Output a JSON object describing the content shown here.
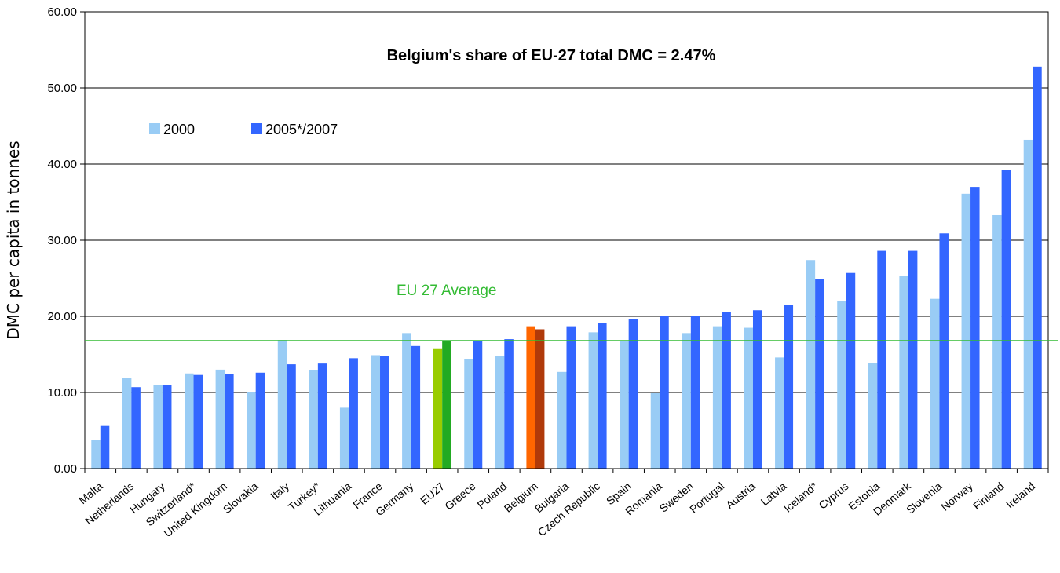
{
  "chart_data": {
    "type": "bar",
    "title": "Belgium's share of EU-27 total DMC = 2.47%",
    "xlabel": "",
    "ylabel": "DMC per capita in tonnes",
    "ylim": [
      0,
      60
    ],
    "yticks": [
      "0.00",
      "10.00",
      "20.00",
      "30.00",
      "40.00",
      "50.00",
      "60.00"
    ],
    "grid": true,
    "legend_position": "upper-left",
    "categories": [
      "Malta",
      "Netherlands",
      "Hungary",
      "Switzerland*",
      "United Kingdom",
      "Slovakia",
      "Italy",
      "Turkey*",
      "Lithuania",
      "France",
      "Germany",
      "EU27",
      "Greece",
      "Poland",
      "Belgium",
      "Bulgaria",
      "Czech Republic",
      "Spain",
      "Romania",
      "Sweden",
      "Portugal",
      "Austria",
      "Latvia",
      "Iceland*",
      "Cyprus",
      "Estonia",
      "Denmark",
      "Slovenia",
      "Norway",
      "Finland",
      "Ireland"
    ],
    "series": [
      {
        "name": "2000",
        "color": "#99CCF5",
        "values": [
          3.8,
          11.9,
          11.0,
          12.5,
          13.0,
          10.0,
          16.9,
          12.9,
          8.0,
          14.9,
          17.8,
          15.8,
          14.4,
          14.8,
          18.7,
          12.7,
          17.9,
          16.8,
          9.9,
          17.8,
          18.7,
          18.5,
          14.6,
          27.4,
          22.0,
          13.9,
          25.3,
          22.3,
          36.1,
          33.3,
          43.2
        ]
      },
      {
        "name": "2005*/2007",
        "color": "#3366FF",
        "values": [
          5.6,
          10.7,
          11.0,
          12.3,
          12.4,
          12.6,
          13.7,
          13.8,
          14.5,
          14.8,
          16.1,
          16.7,
          16.8,
          17.0,
          18.3,
          18.7,
          19.1,
          19.6,
          20.0,
          20.1,
          20.6,
          20.8,
          21.5,
          24.9,
          25.7,
          28.6,
          28.6,
          30.9,
          37.0,
          39.2,
          52.8
        ]
      }
    ],
    "highlight": {
      "EU27": [
        "#99CC00",
        "#22AA22"
      ],
      "Belgium": [
        "#FF6600",
        "#B03A0A"
      ]
    },
    "reference_line": {
      "label": "EU 27 Average",
      "value": 16.8,
      "color": "#33BB33"
    }
  }
}
